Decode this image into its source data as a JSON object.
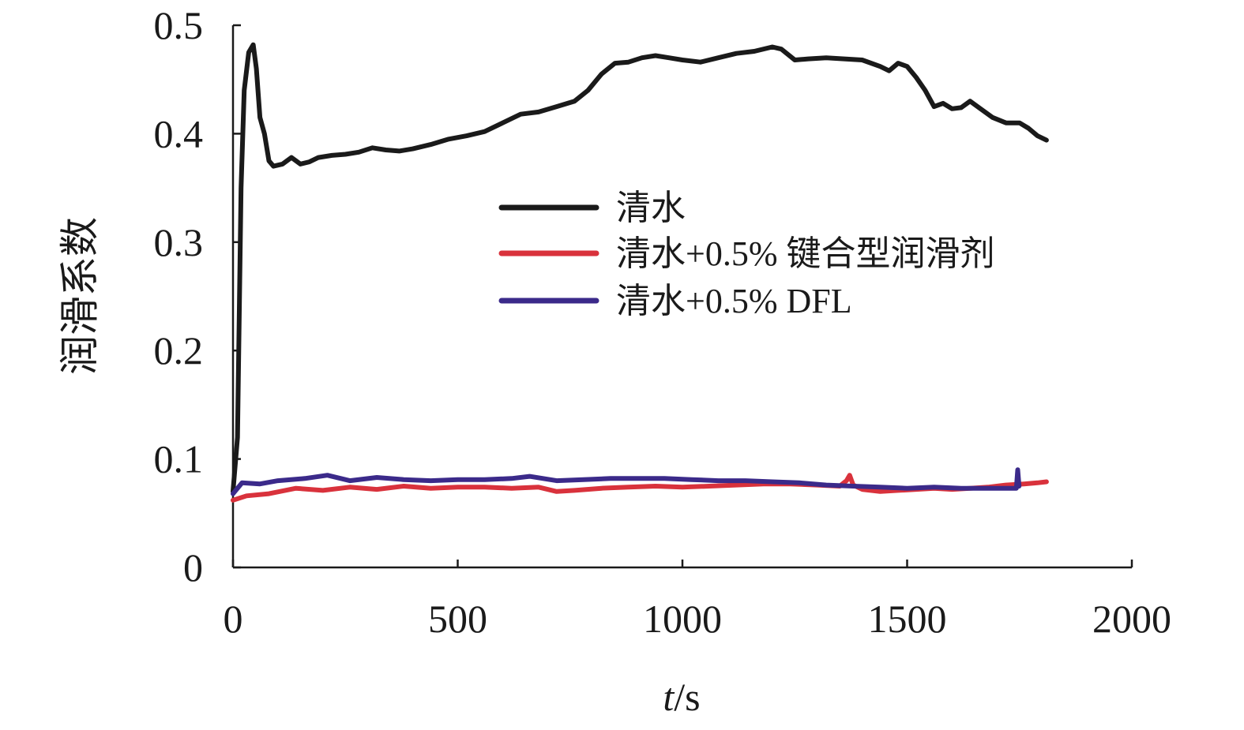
{
  "chart_data": {
    "type": "line",
    "title": "",
    "xlabel_var": "t",
    "xlabel_unit": "/s",
    "ylabel": "润滑系数",
    "xlim": [
      0,
      2000
    ],
    "ylim": [
      0,
      0.5
    ],
    "x_ticks": [
      "0",
      "500",
      "1000",
      "1500",
      "2000"
    ],
    "y_ticks": [
      "0",
      "0.1",
      "0.2",
      "0.3",
      "0.4",
      "0.5"
    ],
    "grid": false,
    "legend_position": "center",
    "series": [
      {
        "name": "清水",
        "color": "#1a1a1a",
        "points": [
          [
            0,
            0.07
          ],
          [
            10,
            0.12
          ],
          [
            18,
            0.35
          ],
          [
            25,
            0.44
          ],
          [
            35,
            0.475
          ],
          [
            45,
            0.482
          ],
          [
            52,
            0.46
          ],
          [
            60,
            0.415
          ],
          [
            70,
            0.4
          ],
          [
            80,
            0.375
          ],
          [
            90,
            0.37
          ],
          [
            110,
            0.372
          ],
          [
            130,
            0.378
          ],
          [
            150,
            0.372
          ],
          [
            170,
            0.374
          ],
          [
            190,
            0.378
          ],
          [
            220,
            0.38
          ],
          [
            250,
            0.381
          ],
          [
            280,
            0.383
          ],
          [
            310,
            0.387
          ],
          [
            340,
            0.385
          ],
          [
            370,
            0.384
          ],
          [
            400,
            0.386
          ],
          [
            440,
            0.39
          ],
          [
            480,
            0.395
          ],
          [
            520,
            0.398
          ],
          [
            560,
            0.402
          ],
          [
            600,
            0.41
          ],
          [
            640,
            0.418
          ],
          [
            680,
            0.42
          ],
          [
            720,
            0.425
          ],
          [
            760,
            0.43
          ],
          [
            790,
            0.44
          ],
          [
            820,
            0.455
          ],
          [
            850,
            0.465
          ],
          [
            880,
            0.466
          ],
          [
            910,
            0.47
          ],
          [
            940,
            0.472
          ],
          [
            970,
            0.47
          ],
          [
            1000,
            0.468
          ],
          [
            1040,
            0.466
          ],
          [
            1080,
            0.47
          ],
          [
            1120,
            0.474
          ],
          [
            1160,
            0.476
          ],
          [
            1200,
            0.48
          ],
          [
            1220,
            0.478
          ],
          [
            1250,
            0.468
          ],
          [
            1280,
            0.469
          ],
          [
            1320,
            0.47
          ],
          [
            1360,
            0.469
          ],
          [
            1400,
            0.468
          ],
          [
            1440,
            0.462
          ],
          [
            1460,
            0.458
          ],
          [
            1480,
            0.465
          ],
          [
            1500,
            0.462
          ],
          [
            1520,
            0.452
          ],
          [
            1540,
            0.44
          ],
          [
            1560,
            0.425
          ],
          [
            1580,
            0.428
          ],
          [
            1600,
            0.423
          ],
          [
            1620,
            0.424
          ],
          [
            1640,
            0.43
          ],
          [
            1660,
            0.424
          ],
          [
            1690,
            0.415
          ],
          [
            1720,
            0.41
          ],
          [
            1750,
            0.41
          ],
          [
            1770,
            0.405
          ],
          [
            1790,
            0.398
          ],
          [
            1810,
            0.394
          ]
        ]
      },
      {
        "name": "清水+0.5% 键合型润滑剂",
        "color": "#d9323c",
        "points": [
          [
            0,
            0.062
          ],
          [
            30,
            0.066
          ],
          [
            80,
            0.068
          ],
          [
            140,
            0.073
          ],
          [
            200,
            0.071
          ],
          [
            260,
            0.074
          ],
          [
            320,
            0.072
          ],
          [
            380,
            0.075
          ],
          [
            440,
            0.073
          ],
          [
            500,
            0.074
          ],
          [
            560,
            0.074
          ],
          [
            620,
            0.073
          ],
          [
            680,
            0.074
          ],
          [
            720,
            0.07
          ],
          [
            760,
            0.071
          ],
          [
            820,
            0.073
          ],
          [
            880,
            0.074
          ],
          [
            940,
            0.075
          ],
          [
            1000,
            0.074
          ],
          [
            1060,
            0.075
          ],
          [
            1120,
            0.076
          ],
          [
            1180,
            0.077
          ],
          [
            1240,
            0.077
          ],
          [
            1300,
            0.076
          ],
          [
            1350,
            0.075
          ],
          [
            1365,
            0.08
          ],
          [
            1372,
            0.085
          ],
          [
            1380,
            0.076
          ],
          [
            1400,
            0.072
          ],
          [
            1440,
            0.07
          ],
          [
            1480,
            0.071
          ],
          [
            1520,
            0.072
          ],
          [
            1560,
            0.073
          ],
          [
            1600,
            0.072
          ],
          [
            1640,
            0.073
          ],
          [
            1680,
            0.074
          ],
          [
            1720,
            0.076
          ],
          [
            1760,
            0.077
          ],
          [
            1790,
            0.078
          ],
          [
            1810,
            0.079
          ]
        ]
      },
      {
        "name": "清水+0.5% DFL",
        "color": "#3b2a8a",
        "points": [
          [
            0,
            0.068
          ],
          [
            20,
            0.078
          ],
          [
            60,
            0.077
          ],
          [
            100,
            0.08
          ],
          [
            160,
            0.082
          ],
          [
            210,
            0.085
          ],
          [
            260,
            0.08
          ],
          [
            320,
            0.083
          ],
          [
            380,
            0.081
          ],
          [
            440,
            0.08
          ],
          [
            500,
            0.081
          ],
          [
            560,
            0.081
          ],
          [
            620,
            0.082
          ],
          [
            660,
            0.084
          ],
          [
            720,
            0.08
          ],
          [
            780,
            0.081
          ],
          [
            840,
            0.082
          ],
          [
            900,
            0.082
          ],
          [
            960,
            0.082
          ],
          [
            1020,
            0.081
          ],
          [
            1080,
            0.08
          ],
          [
            1140,
            0.08
          ],
          [
            1200,
            0.079
          ],
          [
            1260,
            0.078
          ],
          [
            1320,
            0.076
          ],
          [
            1380,
            0.075
          ],
          [
            1440,
            0.074
          ],
          [
            1500,
            0.073
          ],
          [
            1560,
            0.074
          ],
          [
            1620,
            0.073
          ],
          [
            1680,
            0.073
          ],
          [
            1720,
            0.073
          ],
          [
            1743,
            0.073
          ],
          [
            1746,
            0.09
          ],
          [
            1749,
            0.075
          ]
        ]
      }
    ]
  }
}
